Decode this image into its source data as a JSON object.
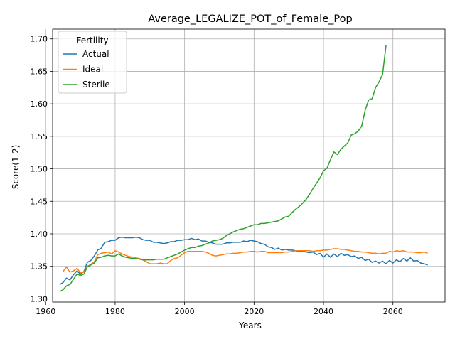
{
  "chart_data": {
    "type": "line",
    "title": "Average_LEGALIZE_POT_of_Female_Pop",
    "xlabel": "Years",
    "ylabel": "Score(1-2)",
    "xlim": [
      1962,
      2075
    ],
    "ylim": [
      1.295,
      1.715
    ],
    "xticks": [
      1960,
      1980,
      2000,
      2020,
      2040,
      2060
    ],
    "yticks": [
      1.3,
      1.35,
      1.4,
      1.45,
      1.5,
      1.55,
      1.6,
      1.65,
      1.7
    ],
    "grid": true,
    "legend": {
      "title": "Fertility",
      "placement": "top-left"
    },
    "series": [
      {
        "name": "Actual",
        "color": "#1f77b4",
        "points": [
          [
            1964,
            1.322
          ],
          [
            1965,
            1.325
          ],
          [
            1966,
            1.332
          ],
          [
            1967,
            1.329
          ],
          [
            1968,
            1.337
          ],
          [
            1969,
            1.343
          ],
          [
            1970,
            1.338
          ],
          [
            1971,
            1.342
          ],
          [
            1972,
            1.356
          ],
          [
            1973,
            1.359
          ],
          [
            1974,
            1.366
          ],
          [
            1975,
            1.375
          ],
          [
            1976,
            1.378
          ],
          [
            1977,
            1.387
          ],
          [
            1978,
            1.388
          ],
          [
            1979,
            1.39
          ],
          [
            1980,
            1.39
          ],
          [
            1981,
            1.394
          ],
          [
            1982,
            1.395
          ],
          [
            1983,
            1.394
          ],
          [
            1984,
            1.394
          ],
          [
            1985,
            1.394
          ],
          [
            1986,
            1.395
          ],
          [
            1987,
            1.394
          ],
          [
            1988,
            1.391
          ],
          [
            1989,
            1.39
          ],
          [
            1990,
            1.39
          ],
          [
            1991,
            1.387
          ],
          [
            1992,
            1.387
          ],
          [
            1993,
            1.386
          ],
          [
            1994,
            1.385
          ],
          [
            1995,
            1.386
          ],
          [
            1996,
            1.388
          ],
          [
            1997,
            1.388
          ],
          [
            1998,
            1.39
          ],
          [
            1999,
            1.39
          ],
          [
            2000,
            1.391
          ],
          [
            2001,
            1.391
          ],
          [
            2002,
            1.393
          ],
          [
            2003,
            1.391
          ],
          [
            2004,
            1.392
          ],
          [
            2005,
            1.389
          ],
          [
            2006,
            1.389
          ],
          [
            2007,
            1.387
          ],
          [
            2008,
            1.386
          ],
          [
            2009,
            1.384
          ],
          [
            2010,
            1.384
          ],
          [
            2011,
            1.384
          ],
          [
            2012,
            1.386
          ],
          [
            2013,
            1.386
          ],
          [
            2014,
            1.387
          ],
          [
            2015,
            1.387
          ],
          [
            2016,
            1.387
          ],
          [
            2017,
            1.389
          ],
          [
            2018,
            1.388
          ],
          [
            2019,
            1.39
          ],
          [
            2020,
            1.389
          ],
          [
            2021,
            1.388
          ],
          [
            2022,
            1.385
          ],
          [
            2023,
            1.384
          ],
          [
            2024,
            1.38
          ],
          [
            2025,
            1.379
          ],
          [
            2026,
            1.376
          ],
          [
            2027,
            1.378
          ],
          [
            2028,
            1.375
          ],
          [
            2029,
            1.376
          ],
          [
            2030,
            1.375
          ],
          [
            2031,
            1.375
          ],
          [
            2032,
            1.374
          ],
          [
            2033,
            1.373
          ],
          [
            2034,
            1.373
          ],
          [
            2035,
            1.372
          ],
          [
            2036,
            1.371
          ],
          [
            2037,
            1.372
          ],
          [
            2038,
            1.368
          ],
          [
            2039,
            1.37
          ],
          [
            2040,
            1.364
          ],
          [
            2041,
            1.369
          ],
          [
            2042,
            1.364
          ],
          [
            2043,
            1.369
          ],
          [
            2044,
            1.365
          ],
          [
            2045,
            1.37
          ],
          [
            2046,
            1.367
          ],
          [
            2047,
            1.368
          ],
          [
            2048,
            1.365
          ],
          [
            2049,
            1.366
          ],
          [
            2050,
            1.362
          ],
          [
            2051,
            1.364
          ],
          [
            2052,
            1.359
          ],
          [
            2053,
            1.361
          ],
          [
            2054,
            1.356
          ],
          [
            2055,
            1.358
          ],
          [
            2056,
            1.355
          ],
          [
            2057,
            1.358
          ],
          [
            2058,
            1.354
          ],
          [
            2059,
            1.359
          ],
          [
            2060,
            1.355
          ],
          [
            2061,
            1.36
          ],
          [
            2062,
            1.357
          ],
          [
            2063,
            1.362
          ],
          [
            2064,
            1.358
          ],
          [
            2065,
            1.363
          ],
          [
            2066,
            1.358
          ],
          [
            2067,
            1.359
          ],
          [
            2068,
            1.355
          ],
          [
            2069,
            1.354
          ],
          [
            2070,
            1.352
          ]
        ]
      },
      {
        "name": "Ideal",
        "color": "#ff7f0e",
        "points": [
          [
            1965,
            1.342
          ],
          [
            1966,
            1.349
          ],
          [
            1967,
            1.341
          ],
          [
            1968,
            1.343
          ],
          [
            1969,
            1.347
          ],
          [
            1970,
            1.34
          ],
          [
            1971,
            1.341
          ],
          [
            1972,
            1.35
          ],
          [
            1973,
            1.353
          ],
          [
            1974,
            1.357
          ],
          [
            1975,
            1.368
          ],
          [
            1976,
            1.37
          ],
          [
            1977,
            1.371
          ],
          [
            1978,
            1.372
          ],
          [
            1979,
            1.369
          ],
          [
            1980,
            1.374
          ],
          [
            1981,
            1.372
          ],
          [
            1982,
            1.369
          ],
          [
            1983,
            1.367
          ],
          [
            1984,
            1.365
          ],
          [
            1985,
            1.364
          ],
          [
            1986,
            1.363
          ],
          [
            1987,
            1.362
          ],
          [
            1988,
            1.36
          ],
          [
            1989,
            1.357
          ],
          [
            1990,
            1.354
          ],
          [
            1991,
            1.354
          ],
          [
            1992,
            1.354
          ],
          [
            1993,
            1.355
          ],
          [
            1994,
            1.354
          ],
          [
            1995,
            1.354
          ],
          [
            1996,
            1.359
          ],
          [
            1997,
            1.362
          ],
          [
            1998,
            1.363
          ],
          [
            1999,
            1.367
          ],
          [
            2000,
            1.371
          ],
          [
            2001,
            1.373
          ],
          [
            2002,
            1.373
          ],
          [
            2003,
            1.373
          ],
          [
            2004,
            1.373
          ],
          [
            2005,
            1.373
          ],
          [
            2006,
            1.372
          ],
          [
            2007,
            1.37
          ],
          [
            2008,
            1.367
          ],
          [
            2009,
            1.366
          ],
          [
            2010,
            1.367
          ],
          [
            2011,
            1.368
          ],
          [
            2012,
            1.369
          ],
          [
            2013,
            1.369
          ],
          [
            2014,
            1.37
          ],
          [
            2015,
            1.37
          ],
          [
            2016,
            1.371
          ],
          [
            2017,
            1.372
          ],
          [
            2018,
            1.372
          ],
          [
            2019,
            1.373
          ],
          [
            2020,
            1.373
          ],
          [
            2021,
            1.372
          ],
          [
            2022,
            1.373
          ],
          [
            2023,
            1.373
          ],
          [
            2024,
            1.371
          ],
          [
            2025,
            1.371
          ],
          [
            2026,
            1.371
          ],
          [
            2027,
            1.371
          ],
          [
            2028,
            1.371
          ],
          [
            2029,
            1.372
          ],
          [
            2030,
            1.372
          ],
          [
            2031,
            1.373
          ],
          [
            2032,
            1.374
          ],
          [
            2033,
            1.374
          ],
          [
            2034,
            1.374
          ],
          [
            2035,
            1.374
          ],
          [
            2036,
            1.374
          ],
          [
            2037,
            1.373
          ],
          [
            2038,
            1.374
          ],
          [
            2039,
            1.374
          ],
          [
            2040,
            1.375
          ],
          [
            2041,
            1.375
          ],
          [
            2042,
            1.376
          ],
          [
            2043,
            1.377
          ],
          [
            2044,
            1.377
          ],
          [
            2045,
            1.376
          ],
          [
            2046,
            1.376
          ],
          [
            2047,
            1.375
          ],
          [
            2048,
            1.374
          ],
          [
            2049,
            1.373
          ],
          [
            2050,
            1.373
          ],
          [
            2051,
            1.372
          ],
          [
            2052,
            1.372
          ],
          [
            2053,
            1.371
          ],
          [
            2054,
            1.37
          ],
          [
            2055,
            1.37
          ],
          [
            2056,
            1.369
          ],
          [
            2057,
            1.37
          ],
          [
            2058,
            1.37
          ],
          [
            2059,
            1.373
          ],
          [
            2060,
            1.372
          ],
          [
            2061,
            1.374
          ],
          [
            2062,
            1.373
          ],
          [
            2063,
            1.374
          ],
          [
            2064,
            1.372
          ],
          [
            2065,
            1.372
          ],
          [
            2066,
            1.372
          ],
          [
            2067,
            1.371
          ],
          [
            2068,
            1.371
          ],
          [
            2069,
            1.372
          ],
          [
            2070,
            1.37
          ]
        ]
      },
      {
        "name": "Sterile",
        "color": "#2ca02c",
        "points": [
          [
            1964,
            1.311
          ],
          [
            1965,
            1.314
          ],
          [
            1966,
            1.32
          ],
          [
            1967,
            1.322
          ],
          [
            1968,
            1.33
          ],
          [
            1969,
            1.338
          ],
          [
            1970,
            1.336
          ],
          [
            1971,
            1.338
          ],
          [
            1972,
            1.349
          ],
          [
            1973,
            1.352
          ],
          [
            1974,
            1.355
          ],
          [
            1975,
            1.363
          ],
          [
            1976,
            1.364
          ],
          [
            1977,
            1.366
          ],
          [
            1978,
            1.367
          ],
          [
            1979,
            1.366
          ],
          [
            1980,
            1.366
          ],
          [
            1981,
            1.369
          ],
          [
            1982,
            1.366
          ],
          [
            1983,
            1.364
          ],
          [
            1984,
            1.363
          ],
          [
            1985,
            1.362
          ],
          [
            1986,
            1.362
          ],
          [
            1987,
            1.361
          ],
          [
            1988,
            1.36
          ],
          [
            1989,
            1.36
          ],
          [
            1990,
            1.36
          ],
          [
            1991,
            1.36
          ],
          [
            1992,
            1.361
          ],
          [
            1993,
            1.361
          ],
          [
            1994,
            1.361
          ],
          [
            1995,
            1.363
          ],
          [
            1996,
            1.365
          ],
          [
            1997,
            1.367
          ],
          [
            1998,
            1.369
          ],
          [
            1999,
            1.372
          ],
          [
            2000,
            1.375
          ],
          [
            2001,
            1.377
          ],
          [
            2002,
            1.379
          ],
          [
            2003,
            1.379
          ],
          [
            2004,
            1.381
          ],
          [
            2005,
            1.382
          ],
          [
            2006,
            1.384
          ],
          [
            2007,
            1.386
          ],
          [
            2008,
            1.389
          ],
          [
            2009,
            1.39
          ],
          [
            2010,
            1.391
          ],
          [
            2011,
            1.393
          ],
          [
            2012,
            1.397
          ],
          [
            2013,
            1.4
          ],
          [
            2014,
            1.403
          ],
          [
            2015,
            1.405
          ],
          [
            2016,
            1.407
          ],
          [
            2017,
            1.408
          ],
          [
            2018,
            1.41
          ],
          [
            2019,
            1.412
          ],
          [
            2020,
            1.414
          ],
          [
            2021,
            1.414
          ],
          [
            2022,
            1.416
          ],
          [
            2023,
            1.416
          ],
          [
            2024,
            1.417
          ],
          [
            2025,
            1.418
          ],
          [
            2026,
            1.419
          ],
          [
            2027,
            1.42
          ],
          [
            2028,
            1.423
          ],
          [
            2029,
            1.426
          ],
          [
            2030,
            1.427
          ],
          [
            2031,
            1.433
          ],
          [
            2032,
            1.438
          ],
          [
            2033,
            1.442
          ],
          [
            2034,
            1.447
          ],
          [
            2035,
            1.453
          ],
          [
            2036,
            1.461
          ],
          [
            2037,
            1.47
          ],
          [
            2038,
            1.478
          ],
          [
            2039,
            1.486
          ],
          [
            2040,
            1.497
          ],
          [
            2041,
            1.501
          ],
          [
            2042,
            1.514
          ],
          [
            2043,
            1.526
          ],
          [
            2044,
            1.522
          ],
          [
            2045,
            1.53
          ],
          [
            2046,
            1.535
          ],
          [
            2047,
            1.54
          ],
          [
            2048,
            1.552
          ],
          [
            2049,
            1.554
          ],
          [
            2050,
            1.558
          ],
          [
            2051,
            1.566
          ],
          [
            2052,
            1.59
          ],
          [
            2053,
            1.606
          ],
          [
            2054,
            1.608
          ],
          [
            2055,
            1.625
          ],
          [
            2056,
            1.634
          ],
          [
            2057,
            1.645
          ],
          [
            2058,
            1.69
          ]
        ]
      }
    ]
  }
}
